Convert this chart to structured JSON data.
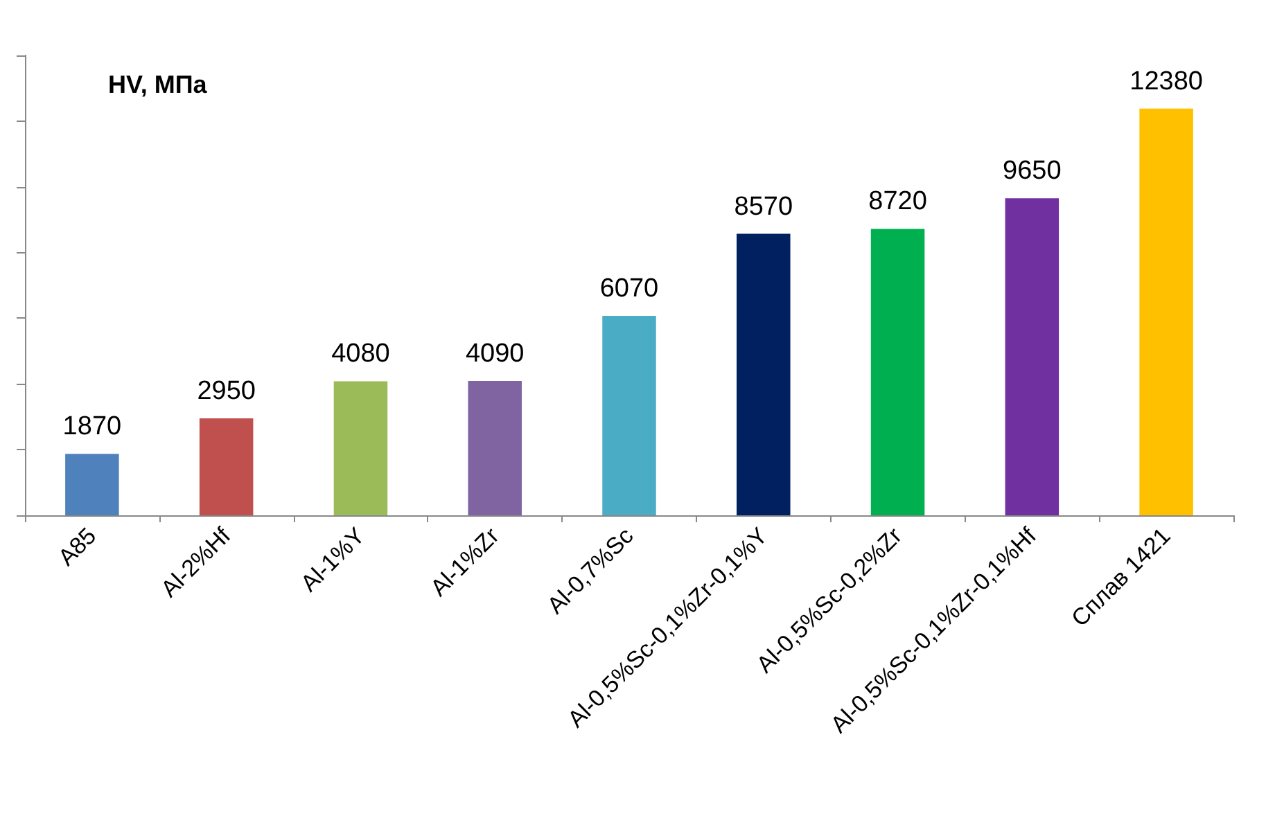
{
  "chart_data": {
    "type": "bar",
    "ylabel": "HV, МПа",
    "categories": [
      "A85",
      "Al-2%Hf",
      "Al-1%Y",
      "Al-1%Zr",
      "Al-0,7%Sc",
      "Al-0,5%Sc-0,1%Zr-0,1%Y",
      "Al-0,5%Sc-0,2%Zr",
      "Al-0,5%Sc-0,1%Zr-0,1%Hf",
      "Сплав 1421"
    ],
    "values": [
      1870,
      2950,
      4080,
      4090,
      6070,
      8570,
      8720,
      9650,
      12380
    ],
    "colors": [
      "#4f81bd",
      "#c0504d",
      "#9bbb59",
      "#8064a2",
      "#4bacc6",
      "#002060",
      "#00b050",
      "#7030a0",
      "#ffc000"
    ],
    "ylim": [
      0,
      14000
    ],
    "yticks": [
      {
        "value": 0,
        "label": null
      },
      {
        "value": 2000,
        "label": null
      },
      {
        "value": 4000,
        "label": null
      },
      {
        "value": 6000,
        "label": null
      },
      {
        "value": 8000,
        "label": null
      },
      {
        "value": 10000,
        "label": null
      },
      {
        "value": 12000,
        "label": null
      },
      {
        "value": 14000,
        "label": null
      }
    ],
    "tick_labels": "x",
    "data_labels": true
  }
}
